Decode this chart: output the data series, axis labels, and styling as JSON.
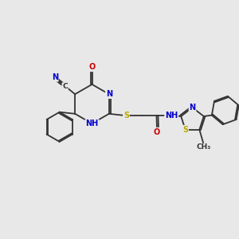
{
  "background_color": "#e8e8e8",
  "bond_color": "#333333",
  "N_color": "#0000cc",
  "O_color": "#cc0000",
  "S_color": "#bbaa00",
  "lw": 1.3,
  "fs": 7.0
}
